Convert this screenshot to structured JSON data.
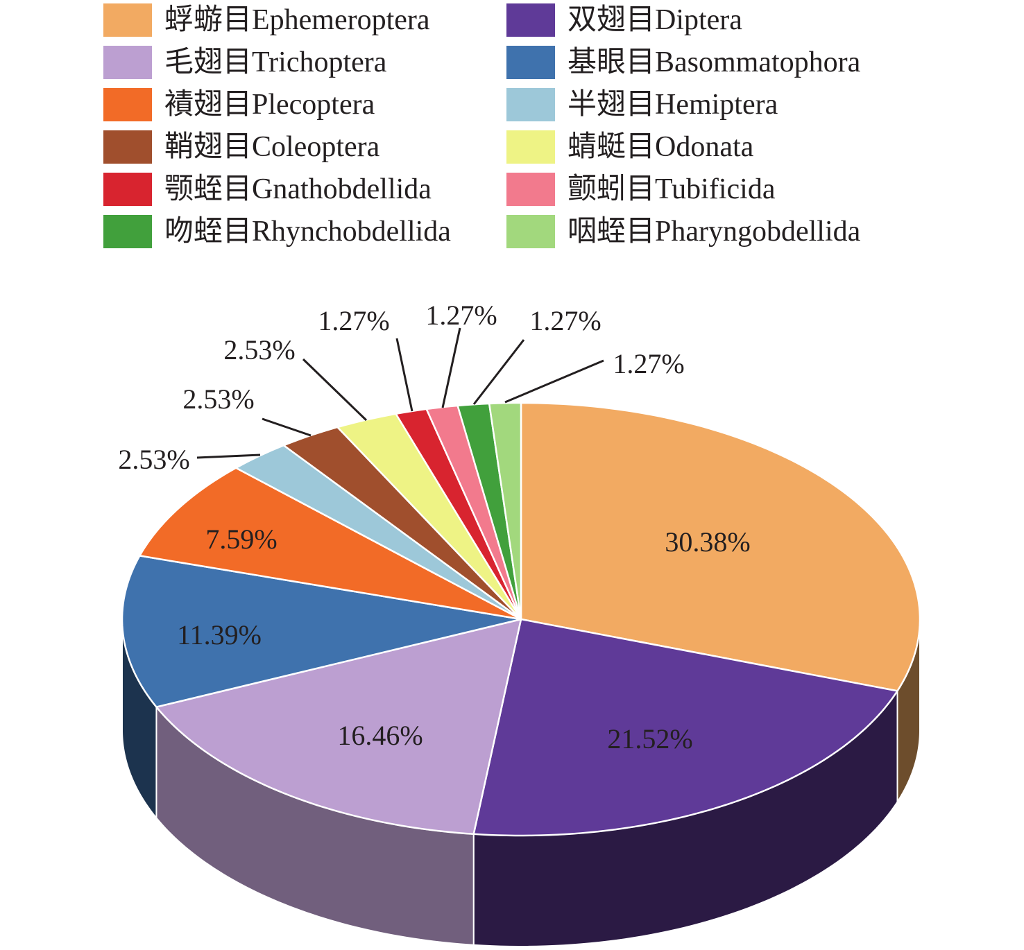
{
  "chart_data": {
    "type": "pie",
    "style": "3d",
    "legend_position": "top",
    "slices": [
      {
        "cn": "蜉蝣目",
        "name": "Ephemeroptera",
        "value": 30.38,
        "label": "30.38%",
        "color": "#f2aa62"
      },
      {
        "cn": "双翅目",
        "name": "Diptera",
        "value": 21.52,
        "label": "21.52%",
        "color": "#5f3a98"
      },
      {
        "cn": "毛翅目",
        "name": "Trichoptera",
        "value": 16.46,
        "label": "16.46%",
        "color": "#bc9fd1"
      },
      {
        "cn": "基眼目",
        "name": "Basommatophora",
        "value": 11.39,
        "label": "11.39%",
        "color": "#3f72ad"
      },
      {
        "cn": "襀翅目",
        "name": "Plecoptera",
        "value": 7.59,
        "label": "7.59%",
        "color": "#f26b27"
      },
      {
        "cn": "半翅目",
        "name": "Hemiptera",
        "value": 2.53,
        "label": "2.53%",
        "color": "#9dc8d9"
      },
      {
        "cn": "鞘翅目",
        "name": "Coleoptera",
        "value": 2.53,
        "label": "2.53%",
        "color": "#a04f2d"
      },
      {
        "cn": "蜻蜓目",
        "name": "Odonata",
        "value": 2.53,
        "label": "2.53%",
        "color": "#eef385"
      },
      {
        "cn": "颚蛭目",
        "name": "Gnathobdellida",
        "value": 1.27,
        "label": "1.27%",
        "color": "#d8242f"
      },
      {
        "cn": "颤蚓目",
        "name": "Tubificida",
        "value": 1.27,
        "label": "1.27%",
        "color": "#f27a8d"
      },
      {
        "cn": "吻蛭目",
        "name": "Rhynchobdellida",
        "value": 1.27,
        "label": "1.27%",
        "color": "#41a03c"
      },
      {
        "cn": "咽蛭目",
        "name": "Pharyngobdellida",
        "value": 1.27,
        "label": "1.27%",
        "color": "#a2d87d"
      }
    ],
    "legend_order": [
      "Ephemeroptera",
      "Diptera",
      "Trichoptera",
      "Basommatophora",
      "Plecoptera",
      "Hemiptera",
      "Coleoptera",
      "Odonata",
      "Gnathobdellida",
      "Tubificida",
      "Rhynchobdellida",
      "Pharyngobdellida"
    ]
  }
}
